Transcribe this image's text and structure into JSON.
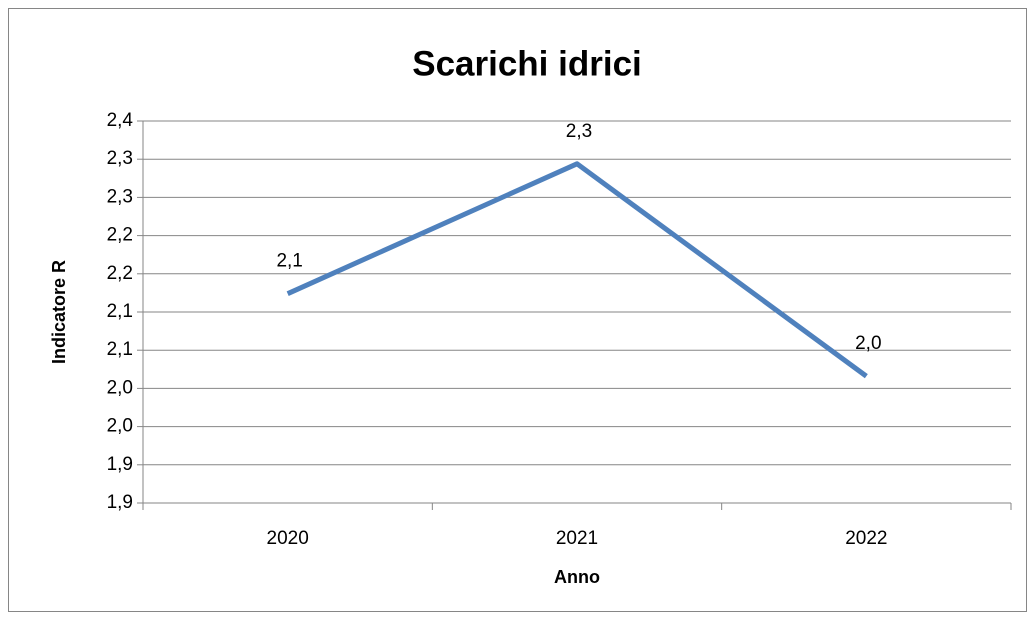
{
  "chart_data": {
    "type": "line",
    "title": "Scarichi idrici",
    "x_label": "Anno",
    "y_label": "Indicatore R",
    "categories": [
      "2020",
      "2021",
      "2022"
    ],
    "values": [
      2.124,
      2.294,
      2.016
    ],
    "value_labels": [
      "2,1",
      "2,3",
      "2,0"
    ],
    "color": "#4f81bd",
    "ylim": [
      1.85,
      2.35
    ],
    "yticks": [
      {
        "value": 1.85,
        "label": "1,9"
      },
      {
        "value": 1.9,
        "label": "1,9"
      },
      {
        "value": 1.95,
        "label": "2,0"
      },
      {
        "value": 2.0,
        "label": "2,0"
      },
      {
        "value": 2.05,
        "label": "2,1"
      },
      {
        "value": 2.1,
        "label": "2,1"
      },
      {
        "value": 2.15,
        "label": "2,2"
      },
      {
        "value": 2.2,
        "label": "2,2"
      },
      {
        "value": 2.25,
        "label": "2,3"
      },
      {
        "value": 2.3,
        "label": "2,3"
      },
      {
        "value": 2.35,
        "label": "2,4"
      }
    ],
    "grid": true
  }
}
